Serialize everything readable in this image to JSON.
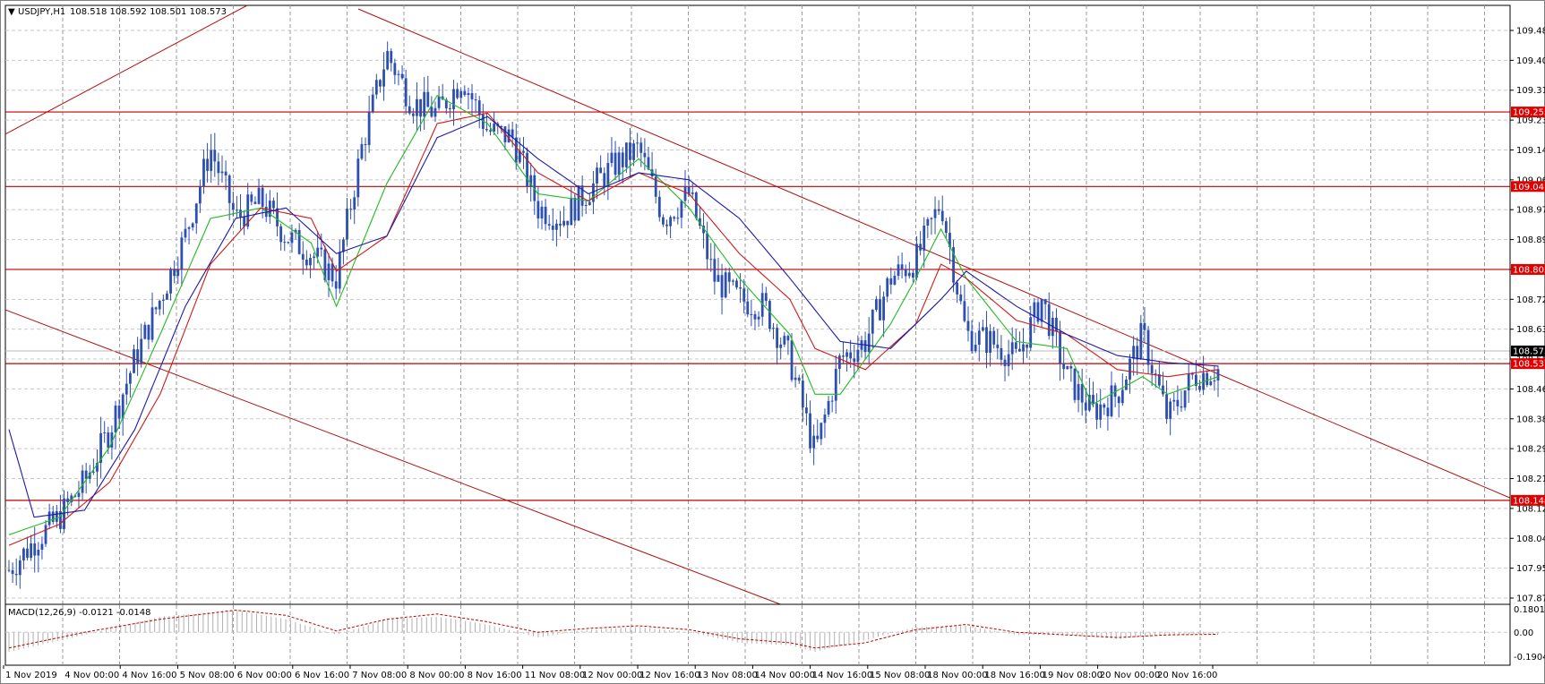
{
  "header": {
    "symbol_label": "USDJPY,H1",
    "ohlc": "108.518 108.592 108.501 108.573"
  },
  "macd_header": {
    "label": "MACD(12,26,9) -0.0121 -0.0148"
  },
  "macd_axis": {
    "top": "0.1801",
    "mid": "0.00",
    "bottom": "-0.1904"
  },
  "colors": {
    "candle": "#2c4fb0",
    "ma_fast": "#22bb22",
    "ma_mid": "#cc1a1a",
    "ma_slow": "#1a1aaa",
    "sr_line": "#c00000",
    "trendline": "#b01010",
    "macd_hist": "#b0b0b0",
    "macd_signal": "#c00000",
    "price_badge_sr": "#e00000",
    "price_badge_current": "#000000"
  },
  "chart_data": {
    "type": "candlestick",
    "instrument": "USDJPY",
    "timeframe": "H1",
    "ylim": [
      107.87,
      109.56
    ],
    "yticks": [
      "109.485",
      "109.400",
      "109.315",
      "109.230",
      "109.145",
      "109.060",
      "108.975",
      "108.890",
      "108.805",
      "108.720",
      "108.635",
      "108.550",
      "108.465",
      "108.380",
      "108.295",
      "108.210",
      "108.125",
      "108.040",
      "107.955",
      "107.870"
    ],
    "xticks": [
      "1 Nov 2019",
      "4 Nov 00:00",
      "4 Nov 16:00",
      "5 Nov 08:00",
      "6 Nov 00:00",
      "6 Nov 16:00",
      "7 Nov 08:00",
      "8 Nov 00:00",
      "8 Nov 16:00",
      "11 Nov 08:00",
      "12 Nov 00:00",
      "12 Nov 16:00",
      "13 Nov 08:00",
      "14 Nov 00:00",
      "14 Nov 16:00",
      "15 Nov 08:00",
      "18 Nov 00:00",
      "18 Nov 16:00",
      "19 Nov 08:00",
      "20 Nov 00:00",
      "20 Nov 16:00"
    ],
    "horizontal_levels": [
      {
        "price": 109.253,
        "label": "109.253"
      },
      {
        "price": 109.041,
        "label": "109.041"
      },
      {
        "price": 108.805,
        "label": "108.805"
      },
      {
        "price": 108.537,
        "label": "108.537"
      },
      {
        "price": 108.148,
        "label": "108.148"
      }
    ],
    "current_price": {
      "price": 108.573,
      "label": "108.573"
    },
    "close_path": [
      [
        0,
        107.95
      ],
      [
        1,
        108.03
      ],
      [
        2,
        108.1
      ],
      [
        3,
        108.2
      ],
      [
        4,
        108.35
      ],
      [
        5,
        108.55
      ],
      [
        6,
        108.72
      ],
      [
        7,
        108.9
      ],
      [
        8,
        109.15
      ],
      [
        9,
        108.95
      ],
      [
        10,
        109.0
      ],
      [
        11,
        108.9
      ],
      [
        12,
        108.85
      ],
      [
        13,
        108.78
      ],
      [
        14,
        109.15
      ],
      [
        15,
        109.42
      ],
      [
        16,
        109.28
      ],
      [
        17,
        109.25
      ],
      [
        18,
        109.35
      ],
      [
        19,
        109.2
      ],
      [
        20,
        109.18
      ],
      [
        21,
        108.98
      ],
      [
        22,
        108.95
      ],
      [
        23,
        109.03
      ],
      [
        24,
        109.1
      ],
      [
        25,
        109.15
      ],
      [
        26,
        108.95
      ],
      [
        27,
        109.02
      ],
      [
        28,
        108.78
      ],
      [
        29,
        108.72
      ],
      [
        30,
        108.7
      ],
      [
        31,
        108.55
      ],
      [
        32,
        108.28
      ],
      [
        33,
        108.55
      ],
      [
        34,
        108.6
      ],
      [
        35,
        108.78
      ],
      [
        36,
        108.83
      ],
      [
        37,
        109.0
      ],
      [
        38,
        108.62
      ],
      [
        39,
        108.6
      ],
      [
        40,
        108.55
      ],
      [
        41,
        108.72
      ],
      [
        42,
        108.5
      ],
      [
        43,
        108.4
      ],
      [
        44,
        108.45
      ],
      [
        45,
        108.62
      ],
      [
        46,
        108.38
      ],
      [
        47,
        108.5
      ],
      [
        48,
        108.52
      ]
    ],
    "ma_fast_path": [
      [
        0,
        108.05
      ],
      [
        2,
        108.1
      ],
      [
        4,
        108.3
      ],
      [
        6,
        108.62
      ],
      [
        8,
        108.95
      ],
      [
        10,
        108.98
      ],
      [
        12,
        108.88
      ],
      [
        13,
        108.7
      ],
      [
        15,
        109.05
      ],
      [
        17,
        109.3
      ],
      [
        19,
        109.22
      ],
      [
        21,
        109.02
      ],
      [
        23,
        109.0
      ],
      [
        25,
        109.12
      ],
      [
        27,
        108.98
      ],
      [
        29,
        108.78
      ],
      [
        31,
        108.62
      ],
      [
        32,
        108.45
      ],
      [
        33,
        108.45
      ],
      [
        35,
        108.65
      ],
      [
        36,
        108.78
      ],
      [
        37,
        108.92
      ],
      [
        38,
        108.78
      ],
      [
        40,
        108.6
      ],
      [
        42,
        108.58
      ],
      [
        43,
        108.42
      ],
      [
        45,
        108.5
      ],
      [
        46,
        108.45
      ],
      [
        48,
        108.5
      ]
    ],
    "ma_mid_path": [
      [
        0,
        108.02
      ],
      [
        2,
        108.08
      ],
      [
        4,
        108.2
      ],
      [
        6,
        108.45
      ],
      [
        8,
        108.82
      ],
      [
        10,
        108.98
      ],
      [
        12,
        108.95
      ],
      [
        13,
        108.8
      ],
      [
        15,
        108.9
      ],
      [
        17,
        109.22
      ],
      [
        19,
        109.25
      ],
      [
        21,
        109.08
      ],
      [
        23,
        109.0
      ],
      [
        25,
        109.08
      ],
      [
        27,
        109.02
      ],
      [
        29,
        108.85
      ],
      [
        31,
        108.72
      ],
      [
        32,
        108.58
      ],
      [
        34,
        108.52
      ],
      [
        36,
        108.65
      ],
      [
        37,
        108.82
      ],
      [
        38,
        108.78
      ],
      [
        40,
        108.66
      ],
      [
        42,
        108.62
      ],
      [
        44,
        108.52
      ],
      [
        46,
        108.5
      ],
      [
        48,
        108.52
      ]
    ],
    "ma_slow_path": [
      [
        0,
        108.35
      ],
      [
        1,
        108.1
      ],
      [
        3,
        108.12
      ],
      [
        5,
        108.35
      ],
      [
        7,
        108.7
      ],
      [
        9,
        108.95
      ],
      [
        11,
        108.98
      ],
      [
        13,
        108.85
      ],
      [
        15,
        108.9
      ],
      [
        17,
        109.18
      ],
      [
        19,
        109.24
      ],
      [
        21,
        109.12
      ],
      [
        23,
        109.02
      ],
      [
        25,
        109.08
      ],
      [
        27,
        109.06
      ],
      [
        29,
        108.95
      ],
      [
        31,
        108.78
      ],
      [
        33,
        108.6
      ],
      [
        35,
        108.58
      ],
      [
        37,
        108.72
      ],
      [
        38,
        108.8
      ],
      [
        40,
        108.7
      ],
      [
        42,
        108.62
      ],
      [
        44,
        108.56
      ],
      [
        46,
        108.54
      ],
      [
        48,
        108.53
      ]
    ],
    "macd_histogram_path": [
      [
        0,
        -0.15
      ],
      [
        3,
        -0.02
      ],
      [
        6,
        0.12
      ],
      [
        9,
        0.17
      ],
      [
        11,
        0.1
      ],
      [
        13,
        -0.02
      ],
      [
        15,
        0.1
      ],
      [
        17,
        0.12
      ],
      [
        19,
        0.06
      ],
      [
        21,
        -0.04
      ],
      [
        23,
        0.02
      ],
      [
        25,
        0.04
      ],
      [
        27,
        0.0
      ],
      [
        29,
        -0.08
      ],
      [
        31,
        -0.1
      ],
      [
        32,
        -0.15
      ],
      [
        34,
        -0.06
      ],
      [
        36,
        0.04
      ],
      [
        38,
        0.05
      ],
      [
        40,
        -0.02
      ],
      [
        42,
        -0.02
      ],
      [
        44,
        -0.05
      ],
      [
        46,
        -0.02
      ],
      [
        48,
        -0.01
      ]
    ],
    "macd_signal_path": [
      [
        0,
        -0.12
      ],
      [
        3,
        0.0
      ],
      [
        6,
        0.1
      ],
      [
        9,
        0.17
      ],
      [
        11,
        0.13
      ],
      [
        13,
        0.01
      ],
      [
        15,
        0.1
      ],
      [
        17,
        0.14
      ],
      [
        19,
        0.08
      ],
      [
        21,
        0.0
      ],
      [
        23,
        0.03
      ],
      [
        25,
        0.05
      ],
      [
        27,
        0.02
      ],
      [
        29,
        -0.05
      ],
      [
        31,
        -0.08
      ],
      [
        32,
        -0.12
      ],
      [
        34,
        -0.08
      ],
      [
        36,
        0.02
      ],
      [
        38,
        0.06
      ],
      [
        40,
        0.0
      ],
      [
        42,
        -0.02
      ],
      [
        44,
        -0.04
      ],
      [
        46,
        -0.02
      ],
      [
        48,
        -0.015
      ]
    ]
  }
}
